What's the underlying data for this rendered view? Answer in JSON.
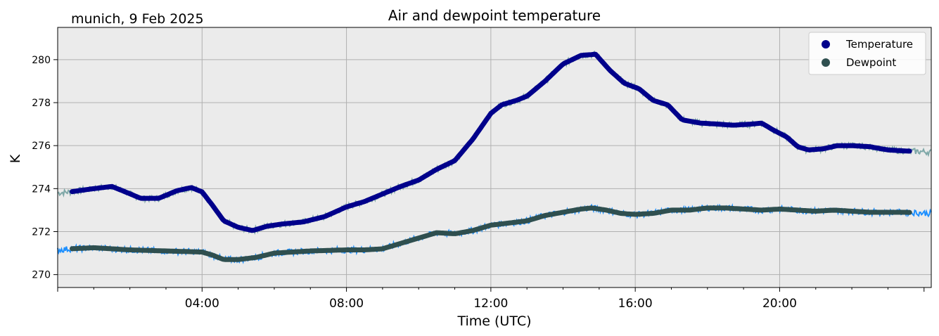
{
  "header": {
    "location_date": "munich, 9 Feb 2025"
  },
  "chart_data": {
    "type": "line",
    "title": "Air and dewpoint temperature",
    "xlabel": "Time (UTC)",
    "ylabel": "K",
    "x_unit": "hours UTC",
    "xlim": [
      0,
      24.2
    ],
    "ylim": [
      269.4,
      281.5
    ],
    "x_ticks": [
      4,
      8,
      12,
      16,
      20
    ],
    "x_tick_labels": [
      "04:00",
      "08:00",
      "12:00",
      "16:00",
      "20:00"
    ],
    "y_ticks": [
      270,
      272,
      274,
      276,
      278,
      280
    ],
    "y_tick_labels": [
      "270",
      "272",
      "274",
      "276",
      "278",
      "280"
    ],
    "grid": true,
    "legend_position": "top-right",
    "series": [
      {
        "name": "Temperature",
        "color": "#00008b",
        "raw_color": "#7fa8a8",
        "x": [
          0,
          0.35,
          1.0,
          1.5,
          1.8,
          2.3,
          2.8,
          3.3,
          3.7,
          4.0,
          4.3,
          4.6,
          5.0,
          5.4,
          5.8,
          6.2,
          6.8,
          7.4,
          8.0,
          8.5,
          9.0,
          9.5,
          10.0,
          10.5,
          11.0,
          11.5,
          12.0,
          12.3,
          12.7,
          13.0,
          13.5,
          14.0,
          14.5,
          14.9,
          15.3,
          15.7,
          16.1,
          16.5,
          16.9,
          17.3,
          17.8,
          18.3,
          18.7,
          19.2,
          19.5,
          19.8,
          20.2,
          20.5,
          20.8,
          21.2,
          21.6,
          22.0,
          22.5,
          23.0,
          23.5,
          24.2
        ],
        "values": [
          273.8,
          273.85,
          274.0,
          274.1,
          273.9,
          273.55,
          273.55,
          273.9,
          274.05,
          273.85,
          273.2,
          272.5,
          272.2,
          272.05,
          272.25,
          272.35,
          272.45,
          272.7,
          273.15,
          273.4,
          273.75,
          274.1,
          274.4,
          274.9,
          275.3,
          276.3,
          277.5,
          277.9,
          278.1,
          278.3,
          279.0,
          279.8,
          280.2,
          280.25,
          279.5,
          278.9,
          278.65,
          278.1,
          277.9,
          277.2,
          277.05,
          277.0,
          276.95,
          277.0,
          277.05,
          276.75,
          276.4,
          275.95,
          275.8,
          275.85,
          276.0,
          276.0,
          275.95,
          275.8,
          275.75,
          275.7
        ]
      },
      {
        "name": "Dewpoint",
        "color": "#2f4f4f",
        "raw_color": "#1e90ff",
        "x": [
          0,
          0.35,
          1.0,
          2.0,
          3.0,
          4.0,
          4.3,
          4.6,
          5.0,
          5.5,
          6.0,
          7.0,
          8.0,
          8.5,
          9.0,
          9.5,
          10.0,
          10.5,
          11.0,
          11.5,
          12.0,
          12.5,
          13.0,
          13.5,
          14.0,
          14.5,
          14.8,
          15.2,
          15.6,
          16.0,
          16.5,
          17.0,
          17.5,
          18.0,
          18.5,
          19.0,
          19.5,
          20.0,
          20.5,
          21.0,
          21.5,
          22.0,
          22.5,
          23.0,
          23.5,
          24.2
        ],
        "values": [
          271.15,
          271.2,
          271.25,
          271.15,
          271.1,
          271.05,
          270.9,
          270.7,
          270.7,
          270.8,
          271.0,
          271.1,
          271.15,
          271.15,
          271.2,
          271.45,
          271.7,
          271.95,
          271.9,
          272.05,
          272.3,
          272.4,
          272.5,
          272.75,
          272.9,
          273.05,
          273.1,
          273.0,
          272.85,
          272.8,
          272.85,
          273.0,
          273.0,
          273.1,
          273.1,
          273.05,
          273.0,
          273.05,
          273.0,
          272.95,
          273.0,
          272.95,
          272.9,
          272.9,
          272.9,
          272.85
        ]
      }
    ]
  }
}
